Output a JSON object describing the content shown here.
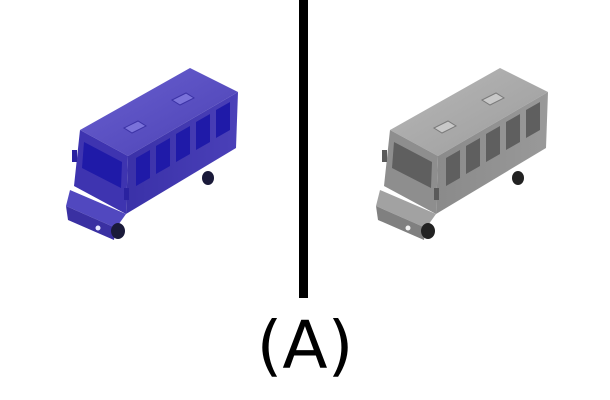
{
  "caption": "(A)",
  "panels": [
    {
      "name": "color-render",
      "tint": "#5a4fc4",
      "window_tint": "#1f1aa8"
    },
    {
      "name": "grayscale-render",
      "tint": "#a8a8a8",
      "window_tint": "#5f5f5f"
    }
  ],
  "colors": {
    "divider": "#000000",
    "background": "#ffffff"
  }
}
